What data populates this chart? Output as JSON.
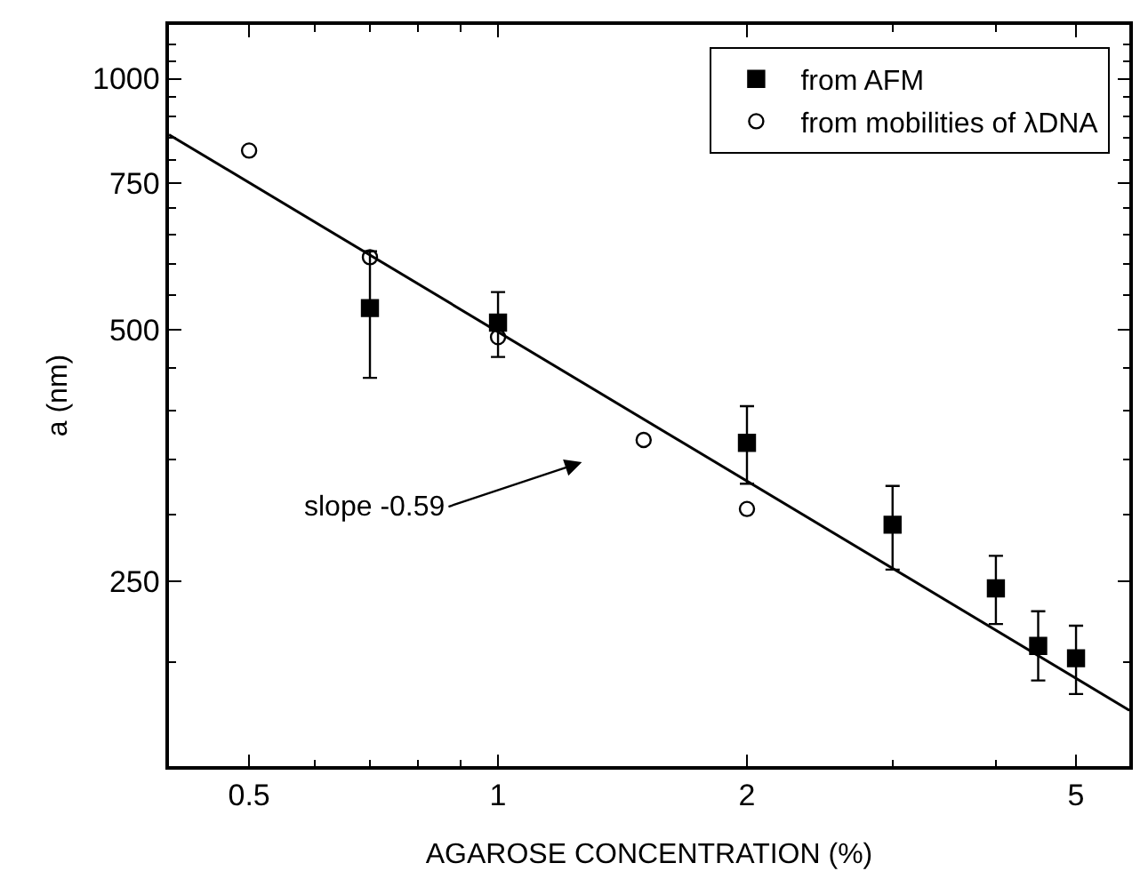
{
  "chart_data": {
    "type": "scatter",
    "xlabel": "AGAROSE CONCENTRATION (%)",
    "ylabel": "a (nm)",
    "log": "xy",
    "xlim": [
      0.4,
      5.8
    ],
    "xticks": [
      0.5,
      1,
      2,
      5
    ],
    "ylim": [
      150,
      1160
    ],
    "yticks": [
      250,
      500,
      750,
      1000
    ],
    "legend": "top right",
    "series": [
      {
        "name": "from AFM",
        "marker": "square",
        "color": "#000000",
        "x": [
          0.7,
          1.0,
          2.0,
          3.0,
          4.0,
          4.5,
          5.0
        ],
        "values": [
          531,
          510,
          366,
          292,
          245,
          209,
          202
        ],
        "errors": [
          [
            438,
            621
          ],
          [
            464,
            555
          ],
          [
            327,
            405
          ],
          [
            258,
            325
          ],
          [
            222,
            268
          ],
          [
            190,
            230
          ],
          [
            183,
            221
          ]
        ]
      },
      {
        "name": "from mobilities of λDNA",
        "marker": "circle",
        "color": "#000000",
        "x": [
          0.5,
          0.7,
          1.0,
          1.5,
          2.0
        ],
        "values": [
          820,
          611,
          490,
          369,
          305
        ]
      },
      {
        "type": "line",
        "color": "#000000",
        "x": [
          0.4,
          5.8
        ],
        "values": [
          857,
          175
        ]
      }
    ],
    "annotations": [
      "slope -0.59"
    ]
  }
}
